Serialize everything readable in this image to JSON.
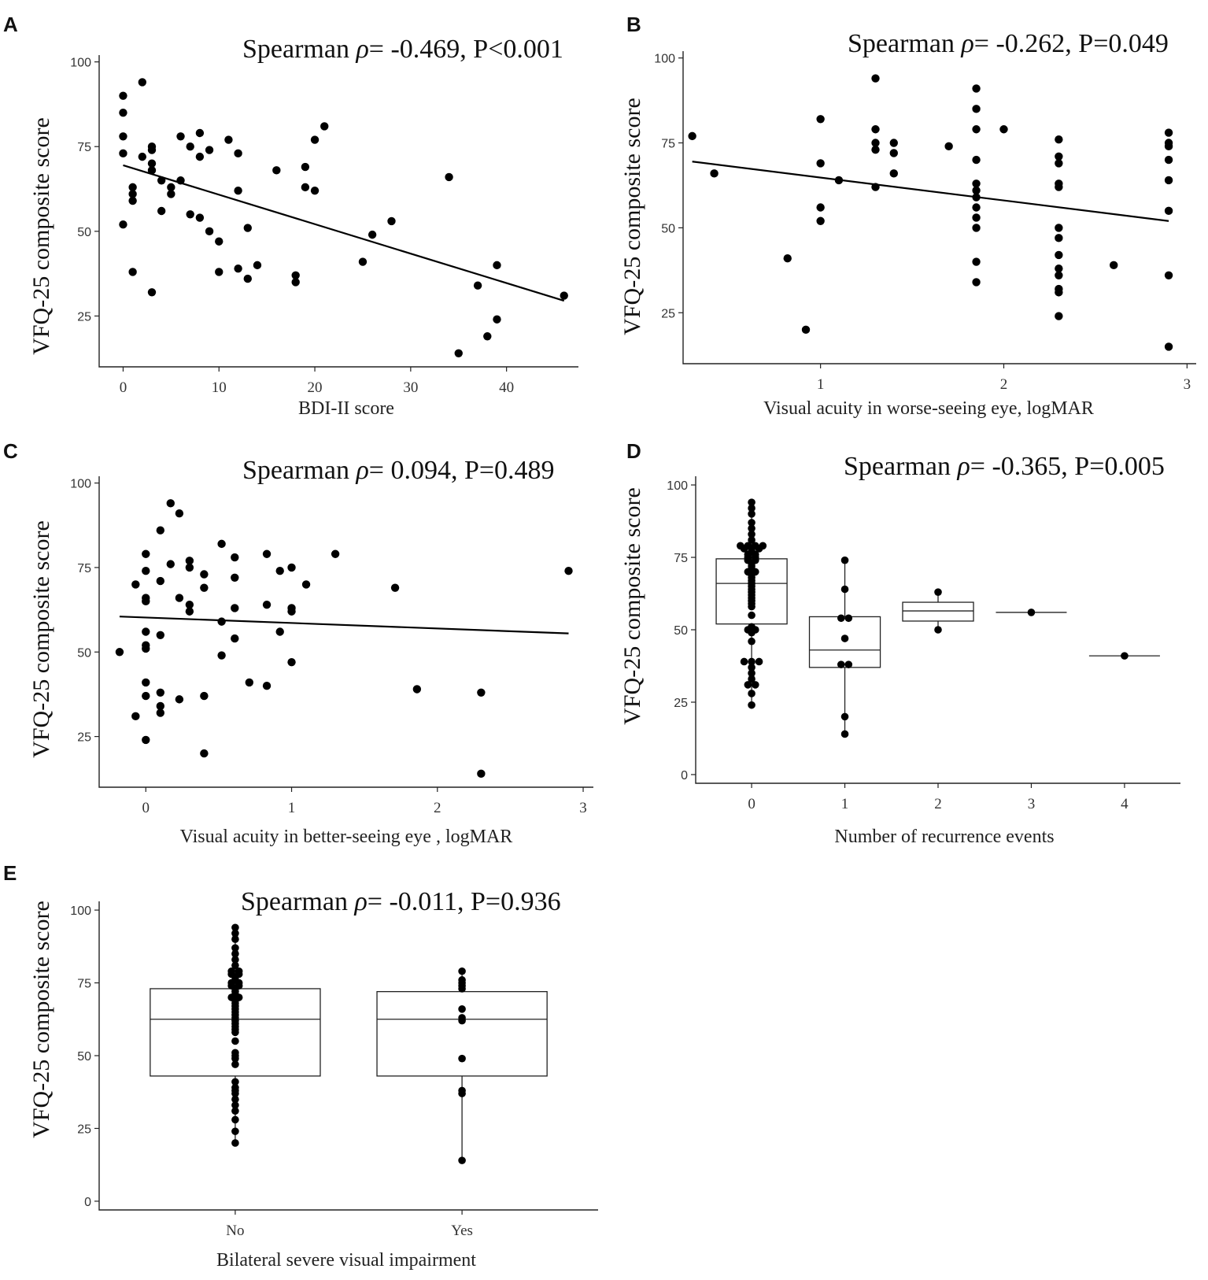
{
  "chart_data": [
    {
      "panel": "A",
      "type": "scatter",
      "annotation": {
        "prefix": "Spearman ",
        "rho": "ρ",
        "suffix": "= -0.469, P<0.001"
      },
      "ylabel": "VFQ-25 composite score",
      "xlabel": "BDI-II score",
      "xlim": [
        -2.5,
        47.5
      ],
      "ylim": [
        10,
        102
      ],
      "xticks": [
        0,
        10,
        20,
        30,
        40
      ],
      "xtick_labels": [
        "0",
        "10",
        "20",
        "30",
        "40"
      ],
      "yticks": [
        25,
        50,
        75,
        100
      ],
      "ytick_labels": [
        "25",
        "50",
        "75",
        "100"
      ],
      "fit_line": [
        [
          0,
          69.5
        ],
        [
          46,
          29.5
        ]
      ],
      "points": [
        [
          0,
          90
        ],
        [
          0,
          85
        ],
        [
          0,
          78
        ],
        [
          0,
          73
        ],
        [
          0,
          52
        ],
        [
          1,
          63
        ],
        [
          1,
          61
        ],
        [
          1,
          59
        ],
        [
          1,
          38
        ],
        [
          2,
          94
        ],
        [
          2,
          72
        ],
        [
          3,
          75
        ],
        [
          3,
          74
        ],
        [
          3,
          70
        ],
        [
          3,
          68
        ],
        [
          3,
          32
        ],
        [
          4,
          65
        ],
        [
          4,
          56
        ],
        [
          5,
          63
        ],
        [
          5,
          61
        ],
        [
          6,
          78
        ],
        [
          6,
          65
        ],
        [
          7,
          75
        ],
        [
          7,
          55
        ],
        [
          8,
          79
        ],
        [
          8,
          72
        ],
        [
          8,
          54
        ],
        [
          9,
          74
        ],
        [
          9,
          50
        ],
        [
          10,
          47
        ],
        [
          10,
          38
        ],
        [
          11,
          77
        ],
        [
          12,
          73
        ],
        [
          12,
          62
        ],
        [
          12,
          39
        ],
        [
          13,
          51
        ],
        [
          13,
          36
        ],
        [
          14,
          40
        ],
        [
          16,
          68
        ],
        [
          18,
          37
        ],
        [
          18,
          35
        ],
        [
          19,
          69
        ],
        [
          19,
          63
        ],
        [
          20,
          77
        ],
        [
          20,
          62
        ],
        [
          21,
          81
        ],
        [
          25,
          41
        ],
        [
          26,
          49
        ],
        [
          28,
          53
        ],
        [
          34,
          66
        ],
        [
          35,
          14
        ],
        [
          37,
          34
        ],
        [
          38,
          19
        ],
        [
          39,
          40
        ],
        [
          39,
          24
        ],
        [
          46,
          31
        ]
      ]
    },
    {
      "panel": "B",
      "type": "scatter",
      "annotation": {
        "prefix": "Spearman ",
        "rho": "ρ",
        "suffix": "= -0.262, P=0.049"
      },
      "ylabel": "VFQ-25 composite score",
      "xlabel": "Visual acuity in worse-seeing eye, logMAR",
      "xlim": [
        0.25,
        3.05
      ],
      "ylim": [
        10,
        102
      ],
      "xticks": [
        1,
        2,
        3
      ],
      "xtick_labels": [
        "1",
        "2",
        "3"
      ],
      "yticks": [
        25,
        50,
        75,
        100
      ],
      "ytick_labels": [
        "25",
        "50",
        "75",
        "100"
      ],
      "fit_line": [
        [
          0.3,
          69.5
        ],
        [
          2.9,
          52
        ]
      ],
      "points": [
        [
          0.3,
          77
        ],
        [
          0.42,
          66
        ],
        [
          0.82,
          41
        ],
        [
          0.92,
          20
        ],
        [
          1.0,
          82
        ],
        [
          1.0,
          69
        ],
        [
          1.0,
          56
        ],
        [
          1.0,
          52
        ],
        [
          1.1,
          64
        ],
        [
          1.3,
          94
        ],
        [
          1.3,
          79
        ],
        [
          1.3,
          75
        ],
        [
          1.3,
          73
        ],
        [
          1.3,
          62
        ],
        [
          1.4,
          75
        ],
        [
          1.4,
          72
        ],
        [
          1.4,
          66
        ],
        [
          1.7,
          74
        ],
        [
          1.85,
          91
        ],
        [
          1.85,
          85
        ],
        [
          1.85,
          79
        ],
        [
          1.85,
          70
        ],
        [
          1.85,
          63
        ],
        [
          1.85,
          61
        ],
        [
          1.85,
          59
        ],
        [
          1.85,
          56
        ],
        [
          1.85,
          53
        ],
        [
          1.85,
          50
        ],
        [
          1.85,
          40
        ],
        [
          1.85,
          34
        ],
        [
          2.0,
          79
        ],
        [
          2.3,
          76
        ],
        [
          2.3,
          71
        ],
        [
          2.3,
          69
        ],
        [
          2.3,
          63
        ],
        [
          2.3,
          62
        ],
        [
          2.3,
          50
        ],
        [
          2.3,
          47
        ],
        [
          2.3,
          42
        ],
        [
          2.3,
          38
        ],
        [
          2.3,
          36
        ],
        [
          2.3,
          32
        ],
        [
          2.3,
          31
        ],
        [
          2.3,
          24
        ],
        [
          2.6,
          39
        ],
        [
          2.9,
          78
        ],
        [
          2.9,
          75
        ],
        [
          2.9,
          74
        ],
        [
          2.9,
          70
        ],
        [
          2.9,
          64
        ],
        [
          2.9,
          55
        ],
        [
          2.9,
          36
        ],
        [
          2.9,
          15
        ]
      ]
    },
    {
      "panel": "C",
      "type": "scatter",
      "annotation": {
        "prefix": "Spearman ",
        "rho": "ρ",
        "suffix": "= 0.094, P=0.489"
      },
      "ylabel": "VFQ-25 composite score",
      "xlabel": "Visual acuity in better-seeing eye , logMAR",
      "xlim": [
        -0.32,
        3.07
      ],
      "ylim": [
        10,
        102
      ],
      "xticks": [
        0,
        1,
        2,
        3
      ],
      "xtick_labels": [
        "0",
        "1",
        "2",
        "3"
      ],
      "yticks": [
        25,
        50,
        75,
        100
      ],
      "ytick_labels": [
        "25",
        "50",
        "75",
        "100"
      ],
      "fit_line": [
        [
          -0.18,
          60.5
        ],
        [
          2.9,
          55.5
        ]
      ],
      "points": [
        [
          -0.18,
          50
        ],
        [
          -0.07,
          70
        ],
        [
          -0.07,
          31
        ],
        [
          0.0,
          79
        ],
        [
          0.0,
          74
        ],
        [
          0.0,
          66
        ],
        [
          0.0,
          65
        ],
        [
          0.0,
          56
        ],
        [
          0.0,
          52
        ],
        [
          0.0,
          51
        ],
        [
          0.0,
          41
        ],
        [
          0.0,
          37
        ],
        [
          0.0,
          24
        ],
        [
          0.1,
          86
        ],
        [
          0.1,
          71
        ],
        [
          0.1,
          55
        ],
        [
          0.1,
          38
        ],
        [
          0.1,
          34
        ],
        [
          0.1,
          32
        ],
        [
          0.17,
          94
        ],
        [
          0.17,
          76
        ],
        [
          0.23,
          91
        ],
        [
          0.23,
          66
        ],
        [
          0.23,
          36
        ],
        [
          0.3,
          77
        ],
        [
          0.3,
          75
        ],
        [
          0.3,
          64
        ],
        [
          0.3,
          62
        ],
        [
          0.4,
          73
        ],
        [
          0.4,
          69
        ],
        [
          0.4,
          37
        ],
        [
          0.4,
          20
        ],
        [
          0.52,
          82
        ],
        [
          0.52,
          59
        ],
        [
          0.52,
          49
        ],
        [
          0.61,
          78
        ],
        [
          0.61,
          72
        ],
        [
          0.61,
          63
        ],
        [
          0.61,
          54
        ],
        [
          0.71,
          41
        ],
        [
          0.83,
          79
        ],
        [
          0.83,
          64
        ],
        [
          0.83,
          40
        ],
        [
          0.92,
          74
        ],
        [
          0.92,
          56
        ],
        [
          1.0,
          75
        ],
        [
          1.0,
          63
        ],
        [
          1.0,
          62
        ],
        [
          1.0,
          47
        ],
        [
          1.1,
          70
        ],
        [
          1.3,
          79
        ],
        [
          1.71,
          69
        ],
        [
          1.86,
          39
        ],
        [
          2.3,
          38
        ],
        [
          2.3,
          14
        ],
        [
          2.9,
          74
        ]
      ]
    },
    {
      "panel": "D",
      "type": "box",
      "annotation": {
        "prefix": "Spearman ",
        "rho": "ρ",
        "suffix": "= -0.365, P=0.005"
      },
      "ylabel": "VFQ-25 composite score",
      "xlabel": "Number of recurrence events",
      "xlim": [
        -0.6,
        4.6
      ],
      "ylim": [
        -3,
        103
      ],
      "categories": [
        "0",
        "1",
        "2",
        "3",
        "4"
      ],
      "yticks": [
        0,
        25,
        50,
        75,
        100
      ],
      "ytick_labels": [
        "0",
        "25",
        "50",
        "75",
        "100"
      ],
      "box_halfwidth": 0.38,
      "boxes": [
        {
          "q1": 52,
          "median": 66,
          "q3": 74.5,
          "whisker_low": 24,
          "whisker_high": 94
        },
        {
          "q1": 37,
          "median": 43,
          "q3": 54.5,
          "whisker_low": 14,
          "whisker_high": 74
        },
        {
          "q1": 53,
          "median": 56.5,
          "q3": 59.5,
          "whisker_low": 50,
          "whisker_high": 63
        },
        {
          "q1": 56,
          "median": 56,
          "q3": 56,
          "whisker_low": 56,
          "whisker_high": 56
        },
        {
          "q1": 41,
          "median": 41,
          "q3": 41,
          "whisker_low": 41,
          "whisker_high": 41
        }
      ],
      "groups": [
        [
          94,
          92,
          90,
          87,
          85,
          83,
          81,
          79,
          79,
          79,
          79,
          78,
          78,
          78,
          77,
          76,
          76,
          75,
          75,
          74,
          74,
          73,
          72,
          71,
          70,
          70,
          69,
          68,
          67,
          66,
          65,
          64,
          63,
          62,
          61,
          60,
          59,
          58,
          55,
          51,
          50,
          50,
          49,
          46,
          39,
          39,
          39,
          37,
          35,
          33,
          31,
          31,
          28,
          24
        ],
        [
          74,
          64,
          54,
          54,
          47,
          38,
          38,
          20,
          14
        ],
        [
          63,
          50
        ],
        [
          56
        ],
        [
          41
        ]
      ]
    },
    {
      "panel": "E",
      "type": "box",
      "annotation": {
        "prefix": "Spearman ",
        "rho": "ρ",
        "suffix": "= -0.011, P=0.936"
      },
      "ylabel": "VFQ-25 composite score",
      "xlabel": "Bilateral severe visual impairment",
      "xlim": [
        -0.6,
        1.6
      ],
      "ylim": [
        -3,
        103
      ],
      "categories": [
        "No",
        "Yes"
      ],
      "yticks": [
        0,
        25,
        50,
        75,
        100
      ],
      "ytick_labels": [
        "0",
        "25",
        "50",
        "75",
        "100"
      ],
      "box_halfwidth": 0.375,
      "boxes": [
        {
          "q1": 43,
          "median": 62.5,
          "q3": 73,
          "whisker_low": 20,
          "whisker_high": 94
        },
        {
          "q1": 43,
          "median": 62.5,
          "q3": 72,
          "whisker_low": 14,
          "whisker_high": 79
        }
      ],
      "groups": [
        [
          94,
          92,
          90,
          87,
          85,
          83,
          81,
          79,
          79,
          78,
          78,
          77,
          76,
          75,
          75,
          74,
          74,
          73,
          72,
          71,
          70,
          70,
          69,
          68,
          67,
          66,
          65,
          64,
          63,
          62,
          61,
          60,
          59,
          58,
          55,
          51,
          50,
          49,
          47,
          41,
          39,
          38,
          37,
          35,
          33,
          31,
          28,
          24,
          20
        ],
        [
          79,
          76,
          75,
          74,
          73,
          66,
          63,
          62,
          49,
          38,
          37,
          14
        ]
      ]
    }
  ]
}
